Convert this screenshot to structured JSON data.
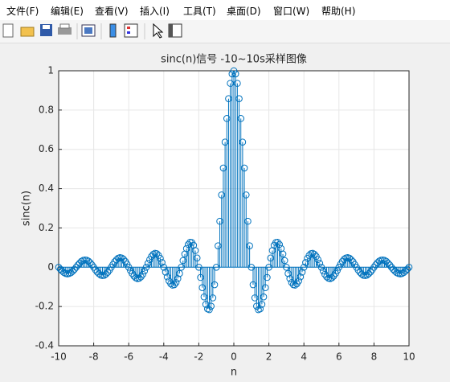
{
  "menu": [
    "文件(F)",
    "编辑(E)",
    "查看(V)",
    "插入(I)",
    "工具(T)",
    "桌面(D)",
    "窗口(W)",
    "帮助(H)"
  ],
  "chart_data": {
    "type": "stem",
    "title": "sinc(n)信号 -10~10s采样图像",
    "x_label": "n",
    "y_label": "sinc(n)",
    "xlim": [
      -10,
      10
    ],
    "ylim": [
      -0.4,
      1
    ],
    "xticks": [
      -10,
      -8,
      -6,
      -4,
      -2,
      0,
      2,
      4,
      6,
      8,
      10
    ],
    "yticks": [
      -0.4,
      -0.2,
      0,
      0.2,
      0.4,
      0.6,
      0.8,
      1
    ],
    "grid": true,
    "series": [
      {
        "color": "#0072bd",
        "x": [
          -10,
          -9.9,
          -9.8,
          -9.7,
          -9.6,
          -9.5,
          -9.4,
          -9.3,
          -9.2,
          -9.1,
          -9,
          -8.9,
          -8.8,
          -8.7,
          -8.6,
          -8.5,
          -8.4,
          -8.3,
          -8.2,
          -8.1,
          -8,
          -7.9,
          -7.8,
          -7.7,
          -7.6,
          -7.5,
          -7.4,
          -7.3,
          -7.2,
          -7.1,
          -7,
          -6.9,
          -6.8,
          -6.7,
          -6.6,
          -6.5,
          -6.4,
          -6.3,
          -6.2,
          -6.1,
          -6,
          -5.9,
          -5.8,
          -5.7,
          -5.6,
          -5.5,
          -5.4,
          -5.3,
          -5.2,
          -5.1,
          -5,
          -4.9,
          -4.8,
          -4.7,
          -4.6,
          -4.5,
          -4.4,
          -4.3,
          -4.2,
          -4.1,
          -4,
          -3.9,
          -3.8,
          -3.7,
          -3.6,
          -3.5,
          -3.4,
          -3.3,
          -3.2,
          -3.1,
          -3,
          -2.9,
          -2.8,
          -2.7,
          -2.6,
          -2.5,
          -2.4,
          -2.3,
          -2.2,
          -2.1,
          -2,
          -1.9,
          -1.8,
          -1.7,
          -1.6,
          -1.5,
          -1.4,
          -1.3,
          -1.2,
          -1.1,
          -1,
          -0.9,
          -0.8,
          -0.7,
          -0.6,
          -0.5,
          -0.4,
          -0.3,
          -0.2,
          -0.1,
          0,
          0.1,
          0.2,
          0.3,
          0.4,
          0.5,
          0.6,
          0.7,
          0.8,
          0.9,
          1,
          1.1,
          1.2,
          1.3,
          1.4,
          1.5,
          1.6,
          1.7,
          1.8,
          1.9,
          2,
          2.1,
          2.2,
          2.3,
          2.4,
          2.5,
          2.6,
          2.7,
          2.8,
          2.9,
          3,
          3.1,
          3.2,
          3.3,
          3.4,
          3.5,
          3.6,
          3.7,
          3.8,
          3.9,
          4,
          4.1,
          4.2,
          4.3,
          4.4,
          4.5,
          4.6,
          4.7,
          4.8,
          4.9,
          5,
          5.1,
          5.2,
          5.3,
          5.4,
          5.5,
          5.6,
          5.7,
          5.8,
          5.9,
          6,
          6.1,
          6.2,
          6.3,
          6.4,
          6.5,
          6.6,
          6.7,
          6.8,
          6.9,
          7,
          7.1,
          7.2,
          7.3,
          7.4,
          7.5,
          7.6,
          7.7,
          7.8,
          7.9,
          8,
          8.1,
          8.2,
          8.3,
          8.4,
          8.5,
          8.6,
          8.7,
          8.8,
          8.9,
          9,
          9.1,
          9.2,
          9.3,
          9.4,
          9.5,
          9.6,
          9.7,
          9.8,
          9.9,
          10
        ],
        "values": [
          0,
          -0.01,
          -0.019,
          -0.027,
          -0.032,
          -0.034,
          -0.032,
          -0.028,
          -0.02,
          -0.011,
          0,
          0.011,
          0.021,
          0.03,
          0.035,
          0.037,
          0.036,
          0.031,
          0.023,
          0.012,
          0,
          -0.013,
          -0.024,
          -0.033,
          -0.04,
          -0.042,
          -0.041,
          -0.035,
          -0.026,
          -0.014,
          0,
          0.014,
          0.028,
          0.038,
          0.046,
          0.049,
          0.047,
          0.041,
          0.03,
          0.016,
          0,
          -0.017,
          -0.032,
          -0.045,
          -0.054,
          -0.058,
          -0.056,
          -0.049,
          -0.036,
          -0.019,
          0,
          0.02,
          0.039,
          0.055,
          0.066,
          0.071,
          0.069,
          0.06,
          0.045,
          0.024,
          0,
          -0.025,
          -0.049,
          -0.07,
          -0.084,
          -0.091,
          -0.089,
          -0.078,
          -0.058,
          -0.032,
          0,
          0.034,
          0.067,
          0.095,
          0.116,
          0.127,
          0.126,
          0.112,
          0.085,
          0.047,
          0,
          -0.052,
          -0.104,
          -0.151,
          -0.189,
          -0.212,
          -0.216,
          -0.198,
          -0.156,
          -0.089,
          0,
          0.109,
          0.234,
          0.368,
          0.505,
          0.637,
          0.757,
          0.858,
          0.936,
          0.984,
          1,
          0.984,
          0.936,
          0.858,
          0.757,
          0.637,
          0.505,
          0.368,
          0.234,
          0.109,
          0,
          -0.089,
          -0.156,
          -0.198,
          -0.216,
          -0.212,
          -0.189,
          -0.151,
          -0.104,
          -0.052,
          0,
          0.047,
          0.085,
          0.112,
          0.126,
          0.127,
          0.116,
          0.095,
          0.067,
          0.034,
          0,
          -0.032,
          -0.058,
          -0.078,
          -0.089,
          -0.091,
          -0.084,
          -0.07,
          -0.049,
          -0.025,
          0,
          0.024,
          0.045,
          0.06,
          0.069,
          0.071,
          0.066,
          0.055,
          0.039,
          0.02,
          0,
          -0.019,
          -0.036,
          -0.049,
          -0.056,
          -0.058,
          -0.054,
          -0.045,
          -0.032,
          -0.017,
          0,
          0.016,
          0.03,
          0.041,
          0.047,
          0.049,
          0.046,
          0.038,
          0.028,
          0.014,
          0,
          -0.014,
          -0.026,
          -0.035,
          -0.041,
          -0.042,
          -0.04,
          -0.033,
          -0.024,
          -0.013,
          0,
          0.012,
          0.023,
          0.031,
          0.036,
          0.037,
          0.035,
          0.03,
          0.021,
          0.011,
          0,
          -0.011,
          -0.02,
          -0.028,
          -0.032,
          -0.034,
          -0.032,
          -0.027,
          -0.019,
          -0.01,
          0
        ]
      }
    ]
  }
}
